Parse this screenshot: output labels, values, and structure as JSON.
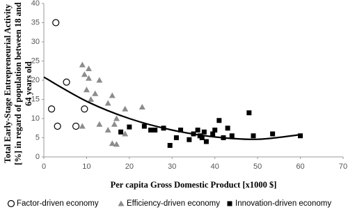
{
  "chart_data": {
    "type": "scatter",
    "y_label": [
      "Total Early-Stage Entrepreneurial Activity",
      "[%] in regard of population between 18 and",
      "64 years old"
    ],
    "x_label": "Per capita Gross Domestic Product [x1000 $]",
    "xlim": [
      0,
      70
    ],
    "xticks": [
      0,
      10,
      20,
      30,
      40,
      50,
      60,
      70
    ],
    "ylim": [
      0,
      40
    ],
    "yticks": [
      0,
      5,
      10,
      15,
      20,
      25,
      30,
      35,
      40
    ],
    "series": [
      {
        "name": "Factor-driven economy",
        "marker": "circle",
        "color": "#000000",
        "x": [
          2.8,
          5.3,
          1.8,
          3.2,
          9.5,
          7.5
        ],
        "values": [
          35,
          19.5,
          12.5,
          8,
          12.5,
          8
        ]
      },
      {
        "name": "Efficiency-driven economy",
        "marker": "triangle",
        "color": "#8c8c8c",
        "x": [
          9,
          10.5,
          9.5,
          10.5,
          13,
          10,
          12,
          16,
          11,
          15,
          23,
          19,
          17,
          13,
          9,
          16.5,
          15,
          19,
          16,
          17
        ],
        "values": [
          24,
          23,
          21.5,
          20.5,
          20,
          17.5,
          16.5,
          16,
          15,
          14,
          13,
          12.5,
          10,
          8.5,
          8,
          8.5,
          7,
          6,
          3.5,
          3.3
        ]
      },
      {
        "name": "Innovation-driven economy",
        "marker": "square",
        "color": "#000000",
        "x": [
          18,
          20,
          23.5,
          25,
          28,
          32,
          29.5,
          31,
          34,
          35,
          36,
          37,
          37.5,
          38,
          39.5,
          40,
          41,
          42,
          43,
          44,
          48,
          49,
          53.5,
          60,
          26,
          36.5
        ],
        "values": [
          6.5,
          7.8,
          8,
          7,
          7.5,
          7,
          3,
          5,
          4.5,
          6,
          7,
          5,
          6.5,
          4,
          6,
          7,
          9.5,
          5,
          7.5,
          5.5,
          11.5,
          5.5,
          6,
          5.5,
          7,
          5.5
        ]
      }
    ],
    "trend": {
      "color": "#000000",
      "x": [
        0,
        10,
        20,
        30,
        40,
        50,
        60
      ],
      "values": [
        20.8,
        14.5,
        10,
        7,
        5.2,
        4.6,
        5.8
      ]
    }
  }
}
